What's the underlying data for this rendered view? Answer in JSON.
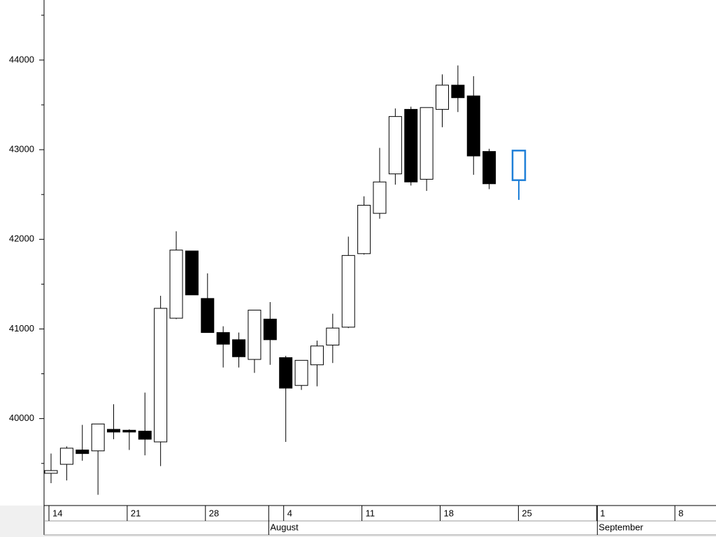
{
  "chart_data": {
    "type": "candlestick",
    "ylim": [
      39030,
      44670
    ],
    "yticks": [
      40000,
      41000,
      42000,
      43000,
      44000
    ],
    "minor_yticks": [
      39500,
      40500,
      41500,
      42500,
      43500,
      44500
    ],
    "weeks": [
      "14",
      "21",
      "28",
      "4",
      "11",
      "18",
      "25",
      "1",
      "8"
    ],
    "months": [
      {
        "name": "August",
        "day_index": 14
      },
      {
        "name": "September",
        "day_index": 35
      }
    ],
    "up_color": "#ffffff",
    "down_color": "#000000",
    "last_color": "#1e7fd8",
    "open": [
      39390,
      39490,
      39650,
      39640,
      39880,
      39870,
      39860,
      39740,
      41120,
      41870,
      41340,
      40960,
      40880,
      40660,
      41110,
      40680,
      40370,
      40600,
      40820,
      41020,
      41840,
      42290,
      42730,
      43450,
      42670,
      43450,
      43720,
      43600,
      42980,
      42660
    ],
    "high": [
      39610,
      39690,
      39930,
      39940,
      40160,
      39880,
      40290,
      41370,
      42090,
      41870,
      41620,
      41030,
      40960,
      41210,
      41300,
      40700,
      40650,
      40870,
      41170,
      42030,
      42480,
      43020,
      43460,
      43480,
      43470,
      43840,
      43940,
      43820,
      43010,
      42990
    ],
    "low": [
      39280,
      39310,
      39530,
      39150,
      39770,
      39650,
      39590,
      39470,
      41110,
      41380,
      40960,
      40570,
      40570,
      40510,
      40600,
      39740,
      40320,
      40360,
      40620,
      41010,
      41830,
      42230,
      42610,
      42600,
      42540,
      43250,
      43420,
      42720,
      42560,
      42440
    ],
    "close": [
      39420,
      39670,
      39610,
      39940,
      39850,
      39850,
      39770,
      41230,
      41880,
      41380,
      40960,
      40830,
      40690,
      41210,
      40880,
      40340,
      40650,
      40810,
      41010,
      41820,
      42380,
      42640,
      43370,
      42640,
      43470,
      43720,
      43580,
      42930,
      42620,
      42990
    ]
  }
}
